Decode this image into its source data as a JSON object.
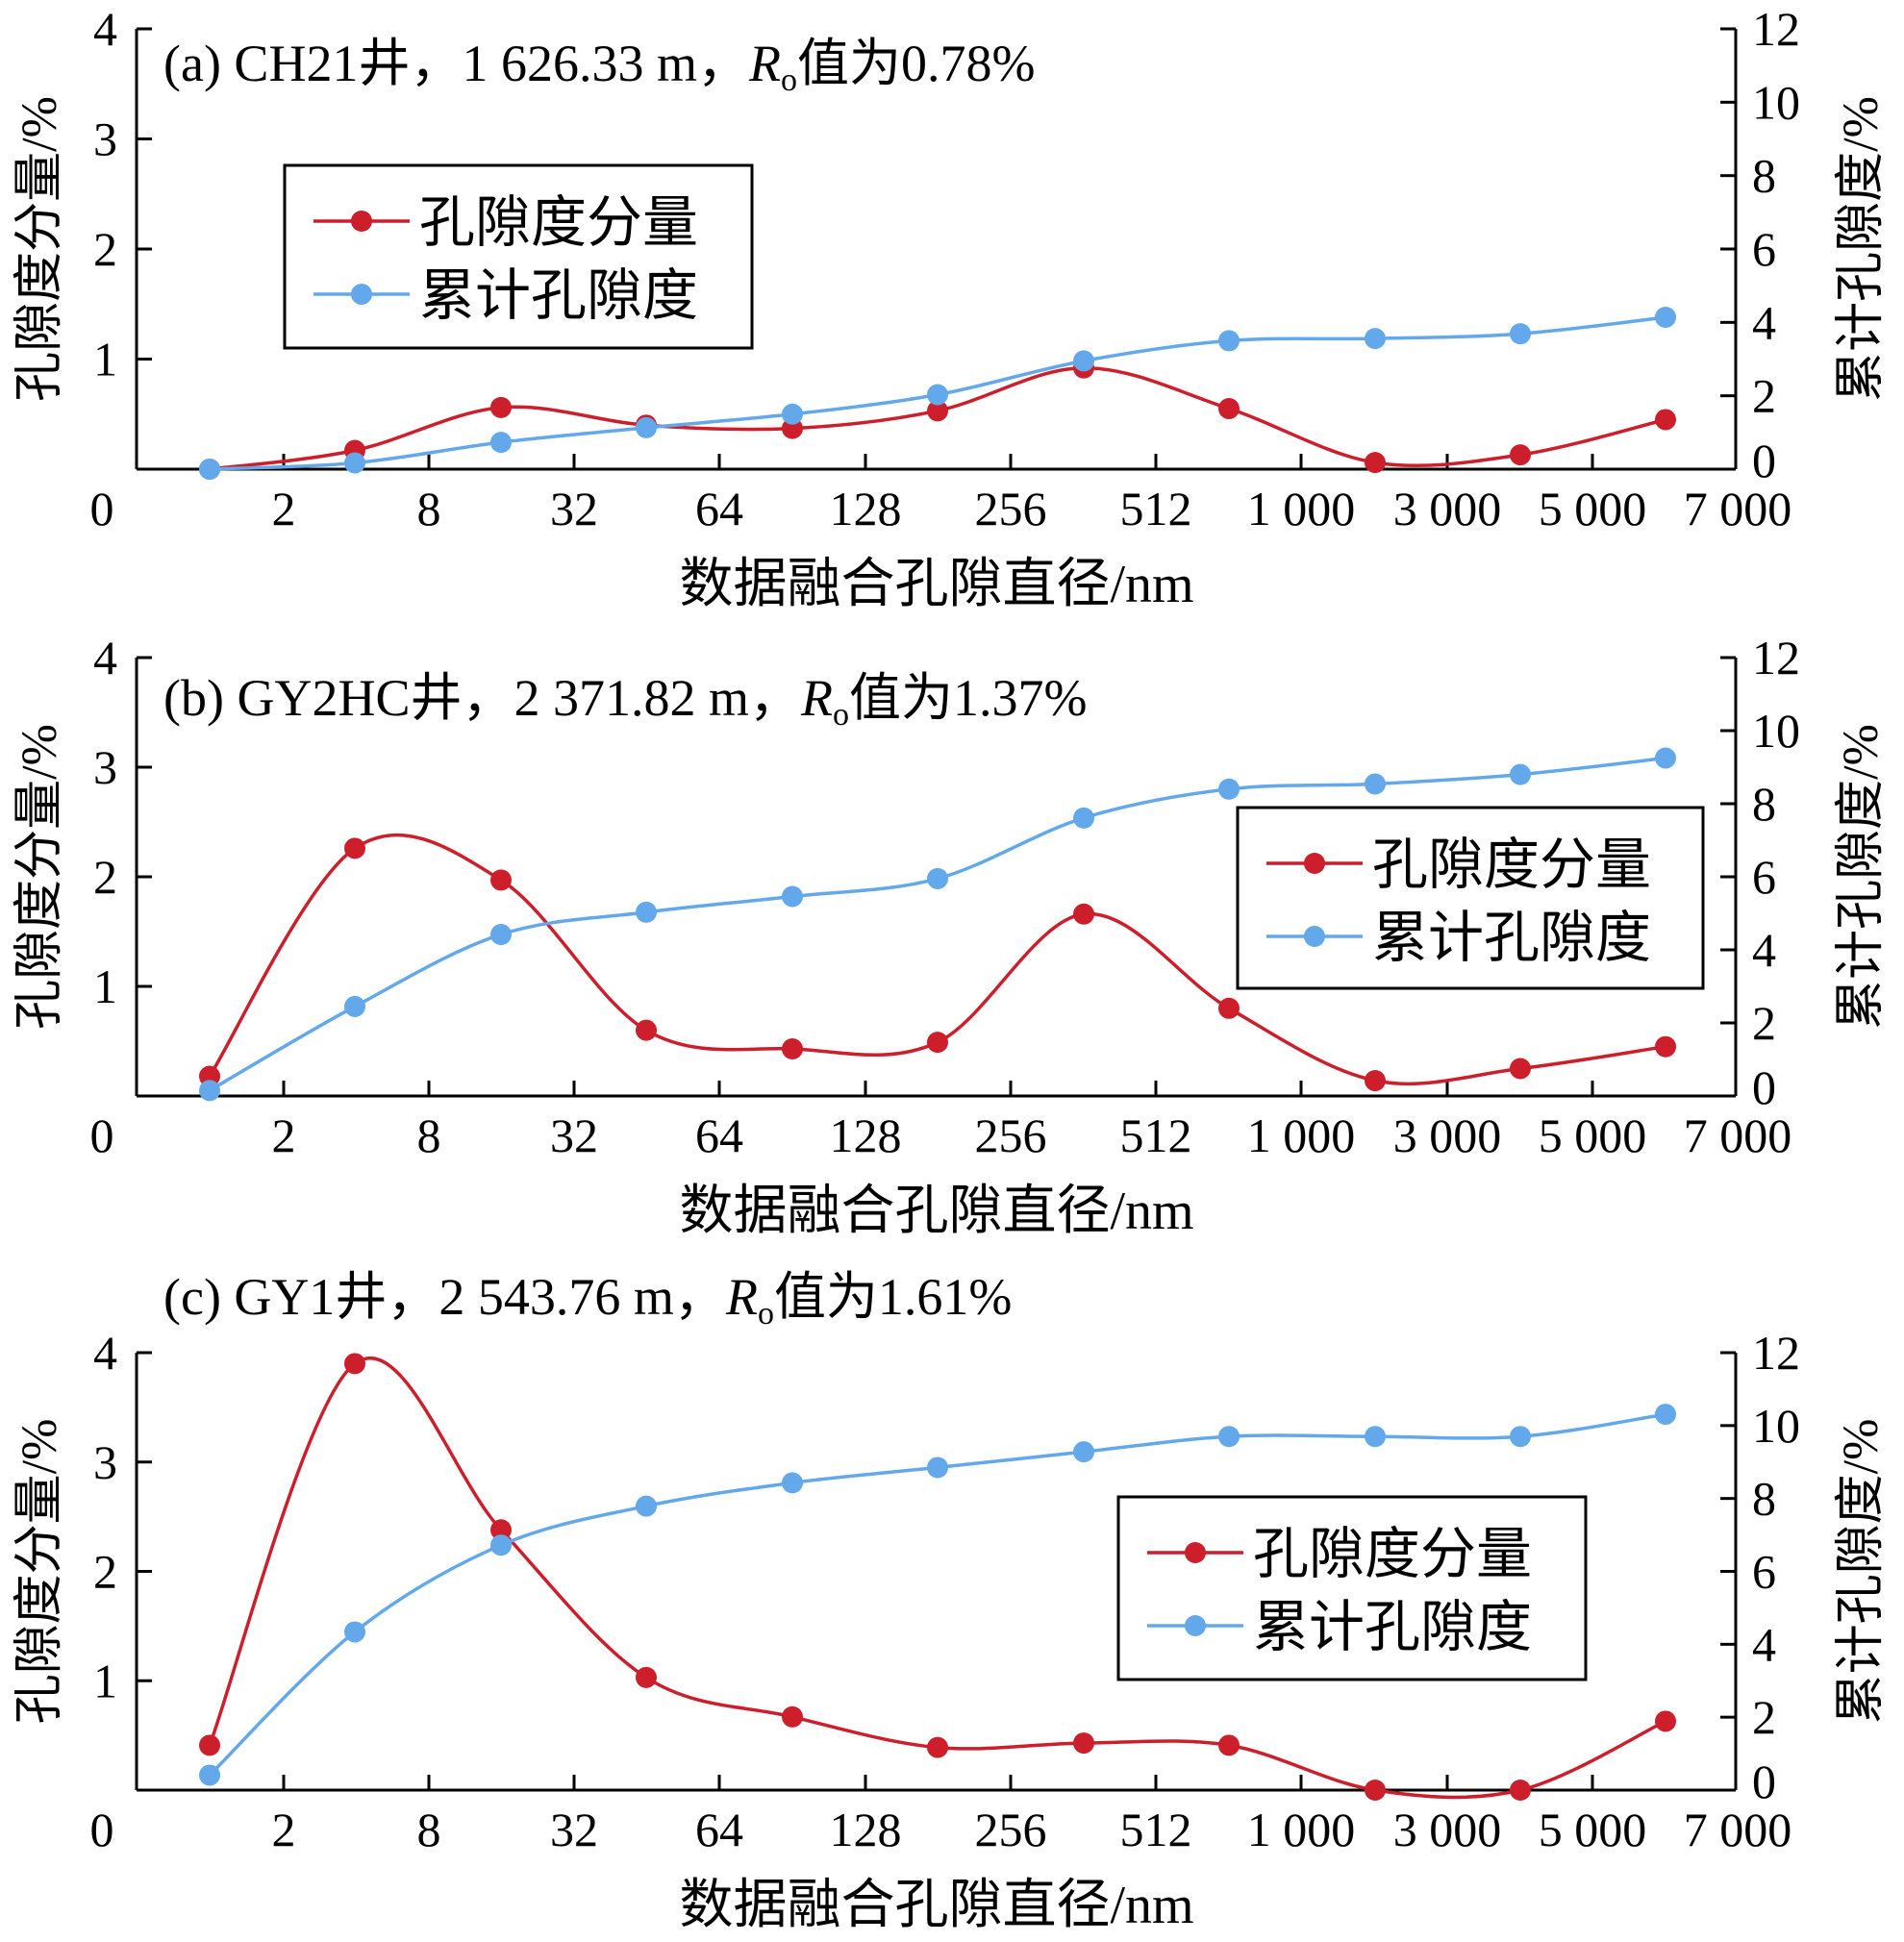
{
  "chart_data": [
    {
      "type": "line",
      "annotation": {
        "prefix": "(a) CH21井，1 626.33 m，",
        "r": "R",
        "sub": "o",
        "suffix": "值为0.78%"
      },
      "x_ticks": [
        "0",
        "2",
        "8",
        "32",
        "64",
        "128",
        "256",
        "512",
        "1 000",
        "3 000",
        "5 000",
        "7 000"
      ],
      "xlabel": "数据融合孔隙直径/nm",
      "ylabel_left": "孔隙度分量/%",
      "ylabel_right": "累计孔隙度/%",
      "ylim_left": [
        0,
        4
      ],
      "ylim_right": [
        0,
        12
      ],
      "y_ticks_left": [
        "0",
        "1",
        "2",
        "3",
        "4"
      ],
      "y_ticks_right": [
        "0",
        "2",
        "4",
        "6",
        "8",
        "10",
        "12"
      ],
      "legend_position": "upper-left",
      "series": [
        {
          "name": "孔隙度分量",
          "axis": "left",
          "color": "#cc1f2b",
          "values": [
            0.0,
            0.17,
            0.56,
            0.4,
            0.37,
            0.53,
            0.92,
            0.55,
            0.06,
            0.13,
            0.45
          ]
        },
        {
          "name": "累计孔隙度",
          "axis": "right",
          "color": "#63a8ea",
          "values": [
            0.0,
            0.17,
            0.73,
            1.13,
            1.5,
            2.03,
            2.95,
            3.5,
            3.56,
            3.69,
            4.14
          ]
        }
      ]
    },
    {
      "type": "line",
      "annotation": {
        "prefix": "(b) GY2HC井，2 371.82 m，",
        "r": "R",
        "sub": "o",
        "suffix": "值为1.37%"
      },
      "x_ticks": [
        "0",
        "2",
        "8",
        "32",
        "64",
        "128",
        "256",
        "512",
        "1 000",
        "3 000",
        "5 000",
        "7 000"
      ],
      "xlabel": "数据融合孔隙直径/nm",
      "ylabel_left": "孔隙度分量/%",
      "ylabel_right": "累计孔隙度/%",
      "ylim_left": [
        0,
        4
      ],
      "ylim_right": [
        0,
        12
      ],
      "y_ticks_left": [
        "0",
        "1",
        "2",
        "3",
        "4"
      ],
      "y_ticks_right": [
        "0",
        "2",
        "4",
        "6",
        "8",
        "10",
        "12"
      ],
      "legend_position": "right",
      "series": [
        {
          "name": "孔隙度分量",
          "axis": "left",
          "color": "#cc1f2b",
          "values": [
            0.18,
            2.26,
            1.97,
            0.6,
            0.43,
            0.49,
            1.66,
            0.8,
            0.14,
            0.25,
            0.45
          ]
        },
        {
          "name": "累计孔隙度",
          "axis": "right",
          "color": "#63a8ea",
          "values": [
            0.15,
            2.45,
            4.42,
            5.03,
            5.46,
            5.95,
            7.61,
            8.4,
            8.54,
            8.8,
            9.25
          ]
        }
      ]
    },
    {
      "type": "line",
      "annotation": {
        "prefix": "(c) GY1井，2 543.76 m，",
        "r": "R",
        "sub": "o",
        "suffix": "值为1.61%"
      },
      "x_ticks": [
        "0",
        "2",
        "8",
        "32",
        "64",
        "128",
        "256",
        "512",
        "1 000",
        "3 000",
        "5 000",
        "7 000"
      ],
      "xlabel": "数据融合孔隙直径/nm",
      "ylabel_left": "孔隙度分量/%",
      "ylabel_right": "累计孔隙度/%",
      "ylim_left": [
        0,
        4
      ],
      "ylim_right": [
        0,
        12
      ],
      "y_ticks_left": [
        "0",
        "1",
        "2",
        "3",
        "4"
      ],
      "y_ticks_right": [
        "0",
        "2",
        "4",
        "6",
        "8",
        "10",
        "12"
      ],
      "legend_position": "right",
      "series": [
        {
          "name": "孔隙度分量",
          "axis": "left",
          "color": "#cc1f2b",
          "values": [
            0.41,
            3.9,
            2.38,
            1.03,
            0.67,
            0.39,
            0.43,
            0.41,
            0.0,
            0.0,
            0.63
          ]
        },
        {
          "name": "累计孔隙度",
          "axis": "right",
          "color": "#63a8ea",
          "values": [
            0.41,
            4.34,
            6.72,
            7.79,
            8.43,
            8.85,
            9.28,
            9.7,
            9.7,
            9.7,
            10.31
          ]
        }
      ]
    }
  ]
}
